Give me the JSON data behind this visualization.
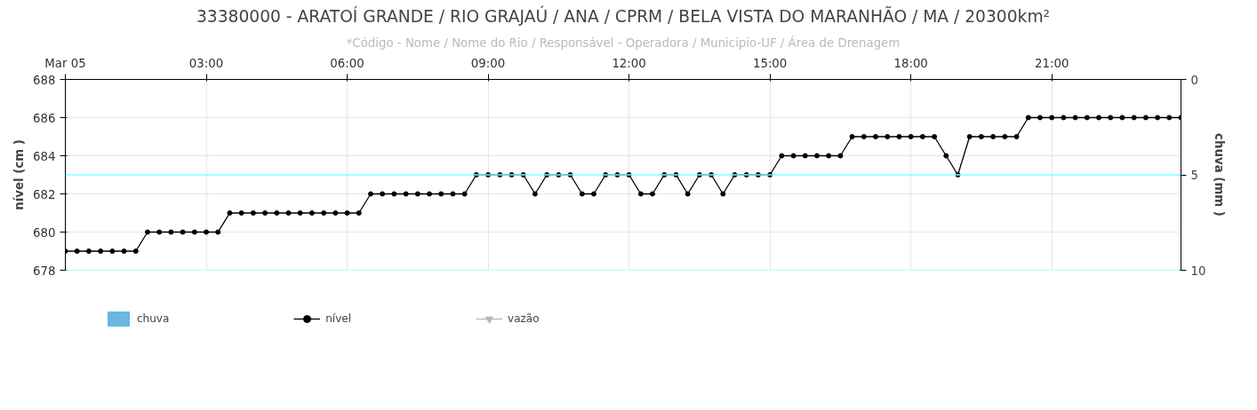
{
  "chart_data": {
    "type": "line",
    "title": "33380000 - ARATOÍ GRANDE / RIO GRAJAÚ / ANA / CPRM / BELA VISTA DO MARANHÃO / MA / 20300km²",
    "subtitle": "*Código - Nome / Nome do Rio / Responsável - Operadora / Municipio-UF / Área de Drenagem",
    "ylabel": "nível (cm )",
    "y2label": "chuva (mm )",
    "x": [
      0,
      0.25,
      0.5,
      0.75,
      1,
      1.25,
      1.5,
      1.75,
      2,
      2.25,
      2.5,
      2.75,
      3,
      3.25,
      3.5,
      3.75,
      4,
      4.25,
      4.5,
      4.75,
      5,
      5.25,
      5.5,
      5.75,
      6,
      6.25,
      6.5,
      6.75,
      7,
      7.25,
      7.5,
      7.75,
      8,
      8.25,
      8.5,
      8.75,
      9,
      9.25,
      9.5,
      9.75,
      10,
      10.25,
      10.5,
      10.75,
      11,
      11.25,
      11.5,
      11.75,
      12,
      12.25,
      12.5,
      12.75,
      13,
      13.25,
      13.5,
      13.75,
      14,
      14.25,
      14.5,
      14.75,
      15,
      15.25,
      15.5,
      15.75,
      16,
      16.25,
      16.5,
      16.75,
      17,
      17.25,
      17.5,
      17.75,
      18,
      18.25,
      18.5,
      18.75,
      19,
      19.25,
      19.5,
      19.75,
      20,
      20.25,
      20.5,
      20.75,
      21,
      21.25,
      21.5,
      21.75,
      22,
      22.25,
      22.5,
      22.75,
      23,
      23.25,
      23.5,
      23.75
    ],
    "series": [
      {
        "name": "chuva",
        "type": "bar",
        "color": "#6ab7e0",
        "values": [
          null,
          null,
          null,
          null,
          null,
          null,
          null,
          null,
          null,
          null,
          null,
          null,
          null,
          null,
          null,
          null,
          null,
          null,
          null,
          null,
          null,
          null,
          null,
          null,
          null,
          null,
          null,
          null,
          null,
          null,
          null,
          null,
          null,
          null,
          null,
          null,
          null,
          null,
          null,
          null,
          null,
          null,
          null,
          null,
          null,
          null,
          null,
          null,
          null,
          null,
          null,
          null,
          null,
          null,
          null,
          null,
          null,
          null,
          null,
          null,
          null,
          null,
          null,
          null,
          null,
          null,
          null,
          null,
          null,
          null,
          null,
          null,
          null,
          null,
          null,
          null,
          null,
          null,
          null,
          null,
          null,
          null,
          null,
          null,
          null,
          null,
          null,
          null,
          null,
          null,
          null,
          null,
          null,
          null,
          null,
          null
        ]
      },
      {
        "name": "nível",
        "color": "#000000",
        "marker": "circle",
        "values": [
          679,
          679,
          679,
          679,
          679,
          679,
          679,
          680,
          680,
          680,
          680,
          680,
          680,
          680,
          681,
          681,
          681,
          681,
          681,
          681,
          681,
          681,
          681,
          681,
          681,
          681,
          682,
          682,
          682,
          682,
          682,
          682,
          682,
          682,
          682,
          683,
          683,
          683,
          683,
          683,
          682,
          683,
          683,
          683,
          682,
          682,
          683,
          683,
          683,
          682,
          682,
          683,
          683,
          682,
          683,
          683,
          682,
          683,
          683,
          683,
          683,
          684,
          684,
          684,
          684,
          684,
          684,
          685,
          685,
          685,
          685,
          685,
          685,
          685,
          685,
          684,
          683,
          685,
          685,
          685,
          685,
          685,
          686,
          686,
          686,
          686,
          686,
          686,
          686,
          686,
          686,
          686,
          686,
          686,
          686,
          686
        ]
      },
      {
        "name": "vazão",
        "type": "line",
        "color": "#b0b8b8",
        "marker": "triangle",
        "values": [
          null,
          null,
          null,
          null,
          null,
          null,
          null,
          null,
          null,
          null,
          null,
          null,
          null,
          null,
          null,
          null,
          null,
          null,
          null,
          null,
          null,
          null,
          null,
          null,
          null,
          null,
          null,
          null,
          null,
          null,
          null,
          null,
          null,
          null,
          null,
          null,
          null,
          null,
          null,
          null,
          null,
          null,
          null,
          null,
          null,
          null,
          null,
          null,
          null,
          null,
          null,
          null,
          null,
          null,
          null,
          null,
          null,
          null,
          null,
          null,
          null,
          null,
          null,
          null,
          null,
          null,
          null,
          null,
          null,
          null,
          null,
          null,
          null,
          null,
          null,
          null,
          null,
          null,
          null,
          null,
          null,
          null,
          null,
          null,
          null,
          null,
          null,
          null,
          null,
          null,
          null,
          null,
          null,
          null,
          null,
          null
        ]
      }
    ],
    "xlim": [
      0,
      23.75
    ],
    "xticks": [
      {
        "value": 0,
        "label": "Mar 05"
      },
      {
        "value": 3,
        "label": "03:00"
      },
      {
        "value": 6,
        "label": "06:00"
      },
      {
        "value": 9,
        "label": "09:00"
      },
      {
        "value": 12,
        "label": "12:00"
      },
      {
        "value": 15,
        "label": "15:00"
      },
      {
        "value": 18,
        "label": "18:00"
      },
      {
        "value": 21,
        "label": "21:00"
      }
    ],
    "ylim": [
      678,
      688
    ],
    "yticks": [
      678,
      680,
      682,
      684,
      686,
      688
    ],
    "y2lim": [
      10,
      0
    ],
    "y2ticks": [
      0,
      5,
      10
    ],
    "ref_lines": [
      {
        "axis": "y2",
        "value": 5,
        "color": "#7fffff"
      },
      {
        "axis": "y2",
        "value": 10,
        "color": "#7fffff"
      }
    ],
    "grid": true,
    "legend": "bottom"
  }
}
